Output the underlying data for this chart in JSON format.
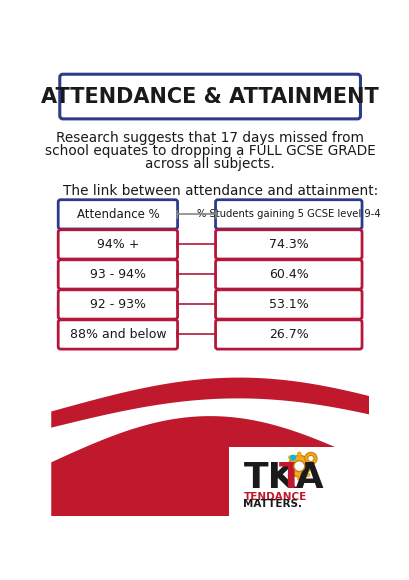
{
  "title": "ATTENDANCE & ATTAINMENT",
  "subtitle_line1": "Research suggests that 17 days missed from",
  "subtitle_line2": "school equates to dropping a FULL GCSE GRADE",
  "subtitle_line3": "across all subjects.",
  "link_text": "The link between attendance and attainment:",
  "col1_header": "Attendance %",
  "col2_header": "% Students gaining 5 GCSE level 9-4",
  "rows": [
    {
      "attendance": "94% +",
      "students": "74.3%"
    },
    {
      "attendance": "93 - 94%",
      "students": "60.4%"
    },
    {
      "attendance": "92 - 93%",
      "students": "53.1%"
    },
    {
      "attendance": "88% and below",
      "students": "26.7%"
    }
  ],
  "header_border_color": "#2e3a8c",
  "row_border_color": "#b5173a",
  "bg_color": "#ffffff",
  "title_border_color": "#2e3a8c",
  "wave_red": "#c0192d",
  "wave_dark_red": "#8b0000",
  "text_color": "#1a1a1a",
  "connector_color_header": "#888888",
  "connector_color_row": "#b5173a"
}
